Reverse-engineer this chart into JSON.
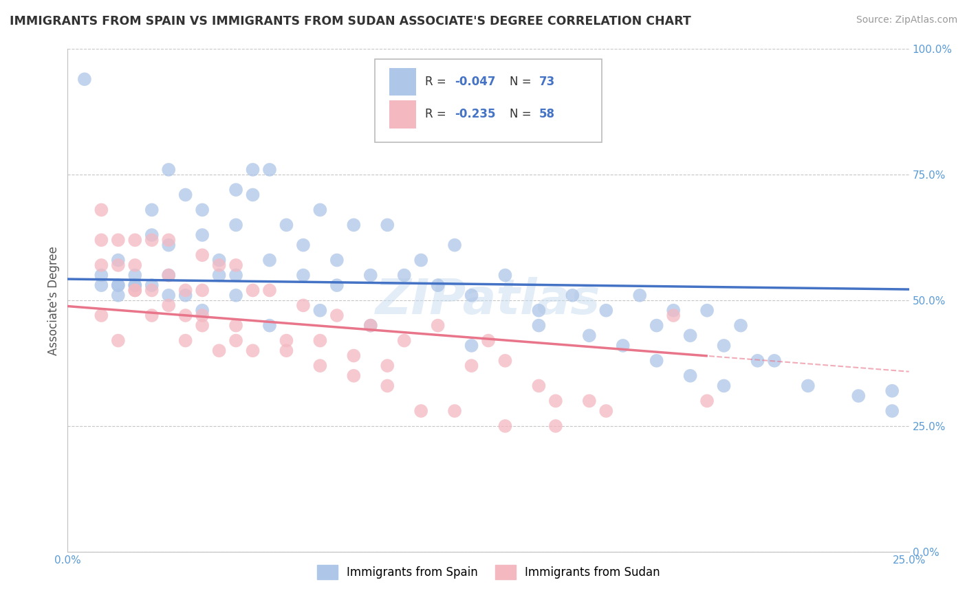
{
  "title": "IMMIGRANTS FROM SPAIN VS IMMIGRANTS FROM SUDAN ASSOCIATE'S DEGREE CORRELATION CHART",
  "source": "Source: ZipAtlas.com",
  "ylabel": "Associate's Degree",
  "xlim": [
    0.0,
    0.25
  ],
  "ylim": [
    0.0,
    1.0
  ],
  "legend_entries": [
    {
      "label": "Immigrants from Spain",
      "color": "#aec6e8",
      "R": "-0.047",
      "N": "73"
    },
    {
      "label": "Immigrants from Sudan",
      "color": "#f4b8c1",
      "R": "-0.235",
      "N": "58"
    }
  ],
  "spain_color": "#aec6e8",
  "sudan_color": "#f4b8c1",
  "spain_line_color": "#4472c4",
  "sudan_line_color": "#e8758a",
  "watermark_color": "#c8ddf0",
  "background_color": "#ffffff",
  "grid_color": "#c0c0c0",
  "spain_x": [
    0.005,
    0.03,
    0.05,
    0.05,
    0.055,
    0.06,
    0.06,
    0.015,
    0.015,
    0.02,
    0.02,
    0.025,
    0.025,
    0.03,
    0.035,
    0.04,
    0.04,
    0.045,
    0.05,
    0.055,
    0.065,
    0.07,
    0.075,
    0.08,
    0.085,
    0.09,
    0.095,
    0.1,
    0.105,
    0.11,
    0.115,
    0.12,
    0.13,
    0.14,
    0.15,
    0.16,
    0.17,
    0.175,
    0.18,
    0.185,
    0.19,
    0.195,
    0.2,
    0.205,
    0.01,
    0.01,
    0.015,
    0.015,
    0.02,
    0.025,
    0.03,
    0.03,
    0.035,
    0.04,
    0.045,
    0.05,
    0.06,
    0.07,
    0.075,
    0.08,
    0.09,
    0.12,
    0.14,
    0.155,
    0.165,
    0.175,
    0.185,
    0.195,
    0.21,
    0.22,
    0.235,
    0.245,
    0.245
  ],
  "spain_y": [
    0.94,
    0.76,
    0.72,
    0.65,
    0.76,
    0.58,
    0.76,
    0.58,
    0.53,
    0.53,
    0.53,
    0.68,
    0.63,
    0.61,
    0.71,
    0.68,
    0.63,
    0.58,
    0.55,
    0.71,
    0.65,
    0.55,
    0.68,
    0.58,
    0.65,
    0.55,
    0.65,
    0.55,
    0.58,
    0.53,
    0.61,
    0.51,
    0.55,
    0.48,
    0.51,
    0.48,
    0.51,
    0.45,
    0.48,
    0.43,
    0.48,
    0.41,
    0.45,
    0.38,
    0.55,
    0.53,
    0.53,
    0.51,
    0.55,
    0.53,
    0.55,
    0.51,
    0.51,
    0.48,
    0.55,
    0.51,
    0.45,
    0.61,
    0.48,
    0.53,
    0.45,
    0.41,
    0.45,
    0.43,
    0.41,
    0.38,
    0.35,
    0.33,
    0.38,
    0.33,
    0.31,
    0.28,
    0.32
  ],
  "sudan_x": [
    0.01,
    0.01,
    0.01,
    0.015,
    0.015,
    0.02,
    0.02,
    0.02,
    0.025,
    0.025,
    0.03,
    0.03,
    0.035,
    0.035,
    0.04,
    0.04,
    0.04,
    0.045,
    0.05,
    0.05,
    0.055,
    0.06,
    0.065,
    0.07,
    0.075,
    0.08,
    0.085,
    0.09,
    0.095,
    0.1,
    0.11,
    0.12,
    0.125,
    0.13,
    0.14,
    0.145,
    0.155,
    0.16,
    0.18,
    0.19,
    0.01,
    0.015,
    0.02,
    0.025,
    0.03,
    0.035,
    0.04,
    0.045,
    0.05,
    0.055,
    0.065,
    0.075,
    0.085,
    0.095,
    0.105,
    0.115,
    0.13,
    0.145
  ],
  "sudan_y": [
    0.68,
    0.62,
    0.57,
    0.62,
    0.57,
    0.62,
    0.57,
    0.52,
    0.62,
    0.52,
    0.62,
    0.55,
    0.52,
    0.47,
    0.59,
    0.52,
    0.47,
    0.57,
    0.57,
    0.45,
    0.52,
    0.52,
    0.42,
    0.49,
    0.42,
    0.47,
    0.39,
    0.45,
    0.37,
    0.42,
    0.45,
    0.37,
    0.42,
    0.38,
    0.33,
    0.3,
    0.3,
    0.28,
    0.47,
    0.3,
    0.47,
    0.42,
    0.52,
    0.47,
    0.49,
    0.42,
    0.45,
    0.4,
    0.42,
    0.4,
    0.4,
    0.37,
    0.35,
    0.33,
    0.28,
    0.28,
    0.25,
    0.25
  ]
}
